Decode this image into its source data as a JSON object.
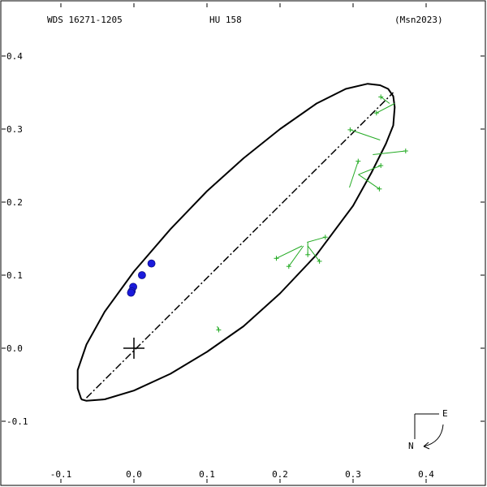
{
  "header": {
    "left": "WDS 16271-1205",
    "center": "HU  158",
    "right": "(Msn2023)"
  },
  "compass": {
    "east": "E",
    "north": "N"
  },
  "chart_data": {
    "type": "scatter",
    "title": "",
    "xlim": [
      -0.18,
      0.48
    ],
    "ylim": [
      -0.18,
      0.47
    ],
    "x_ticks": [
      -0.1,
      0.0,
      0.1,
      0.2,
      0.3,
      0.4
    ],
    "x_tick_labels": [
      "-0.1",
      "0.0",
      "0.1",
      "0.2",
      "0.3",
      "0.4"
    ],
    "y_ticks": [
      0.4,
      0.3,
      0.2,
      0.1,
      0.0,
      -0.1
    ],
    "y_tick_labels": [
      "0.4",
      "0.3",
      "0.2",
      "0.1",
      "0.0",
      "-0.1"
    ],
    "primary": {
      "x": 0.0,
      "y": 0.0
    },
    "orbit_ellipse": [
      [
        -0.072,
        -0.07
      ],
      [
        -0.065,
        -0.072
      ],
      [
        -0.04,
        -0.07
      ],
      [
        0.0,
        -0.058
      ],
      [
        0.05,
        -0.035
      ],
      [
        0.1,
        -0.005
      ],
      [
        0.15,
        0.03
      ],
      [
        0.2,
        0.075
      ],
      [
        0.25,
        0.128
      ],
      [
        0.3,
        0.195
      ],
      [
        0.325,
        0.24
      ],
      [
        0.345,
        0.28
      ],
      [
        0.355,
        0.305
      ],
      [
        0.357,
        0.33
      ],
      [
        0.355,
        0.345
      ],
      [
        0.348,
        0.355
      ],
      [
        0.337,
        0.36
      ],
      [
        0.32,
        0.362
      ],
      [
        0.29,
        0.355
      ],
      [
        0.25,
        0.335
      ],
      [
        0.2,
        0.3
      ],
      [
        0.15,
        0.26
      ],
      [
        0.1,
        0.215
      ],
      [
        0.05,
        0.163
      ],
      [
        0.0,
        0.105
      ],
      [
        -0.04,
        0.05
      ],
      [
        -0.065,
        0.005
      ],
      [
        -0.077,
        -0.03
      ],
      [
        -0.077,
        -0.055
      ],
      [
        -0.072,
        -0.07
      ]
    ],
    "line_of_apsides": {
      "x1": -0.065,
      "y1": -0.068,
      "x2": 0.355,
      "y2": 0.35
    },
    "measurements": [
      {
        "x": 0.338,
        "y": 0.344,
        "x_fit": 0.35,
        "y_fit": 0.335
      },
      {
        "x": 0.332,
        "y": 0.322,
        "x_fit": 0.357,
        "y_fit": 0.335
      },
      {
        "x": 0.296,
        "y": 0.299,
        "x_fit": 0.337,
        "y_fit": 0.285
      },
      {
        "x": 0.372,
        "y": 0.27,
        "x_fit": 0.327,
        "y_fit": 0.265
      },
      {
        "x": 0.307,
        "y": 0.256,
        "x_fit": 0.295,
        "y_fit": 0.22
      },
      {
        "x": 0.338,
        "y": 0.25,
        "x_fit": 0.308,
        "y_fit": 0.238
      },
      {
        "x": 0.336,
        "y": 0.218,
        "x_fit": 0.307,
        "y_fit": 0.238
      },
      {
        "x": 0.262,
        "y": 0.152,
        "x_fit": 0.237,
        "y_fit": 0.145
      },
      {
        "x": 0.195,
        "y": 0.123,
        "x_fit": 0.23,
        "y_fit": 0.14
      },
      {
        "x": 0.238,
        "y": 0.128,
        "x_fit": 0.238,
        "y_fit": 0.145
      },
      {
        "x": 0.254,
        "y": 0.119,
        "x_fit": 0.238,
        "y_fit": 0.14
      },
      {
        "x": 0.212,
        "y": 0.112,
        "x_fit": 0.232,
        "y_fit": 0.14
      },
      {
        "x": 0.116,
        "y": 0.025,
        "x_fit": 0.114,
        "y_fit": 0.03
      }
    ],
    "recent_points": [
      {
        "x": 0.024,
        "y": 0.116
      },
      {
        "x": 0.011,
        "y": 0.1
      },
      {
        "x": -0.001,
        "y": 0.084
      },
      {
        "x": -0.003,
        "y": 0.078
      },
      {
        "x": -0.004,
        "y": 0.076
      }
    ],
    "colors": {
      "orbit": "#000000",
      "measurement": "#22aa22",
      "recent": "#1a1adc",
      "axis": "#000000"
    }
  }
}
